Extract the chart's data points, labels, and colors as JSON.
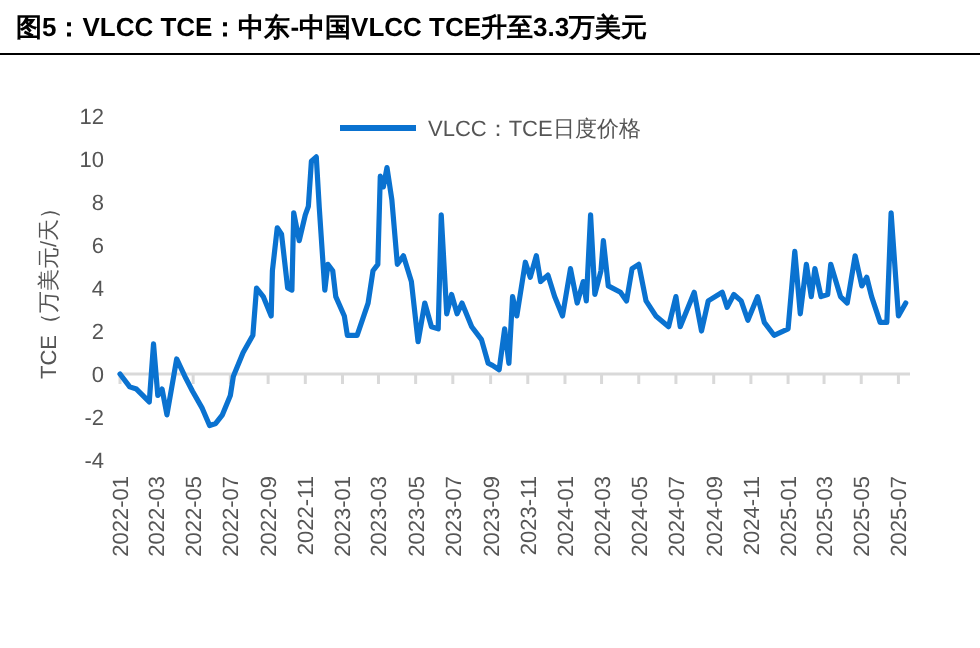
{
  "chart_data": {
    "type": "line",
    "title": "图5：VLCC TCE：中东-中国VLCC TCE升至3.3万美元",
    "ylabel": "TCE（万美元/天）",
    "x": [
      "2022-01-01",
      "2022-01-17",
      "2022-01-28",
      "2022-02-18",
      "2022-02-25",
      "2022-03-04",
      "2022-03-11",
      "2022-03-19",
      "2022-04-04",
      "2022-04-19",
      "2022-04-30",
      "2022-05-16",
      "2022-05-28",
      "2022-06-07",
      "2022-06-18",
      "2022-07-01",
      "2022-07-06",
      "2022-07-22",
      "2022-08-07",
      "2022-08-13",
      "2022-08-24",
      "2022-09-06",
      "2022-09-08",
      "2022-09-16",
      "2022-09-23",
      "2022-10-03",
      "2022-10-10",
      "2022-10-13",
      "2022-10-22",
      "2022-11-01",
      "2022-11-06",
      "2022-11-11",
      "2022-11-19",
      "2022-11-24",
      "2022-12-03",
      "2022-12-08",
      "2022-12-16",
      "2022-12-21",
      "2023-01-04",
      "2023-01-09",
      "2023-01-25",
      "2023-02-12",
      "2023-02-20",
      "2023-02-28",
      "2023-03-04",
      "2023-03-09",
      "2023-03-15",
      "2023-03-23",
      "2023-04-01",
      "2023-04-11",
      "2023-04-24",
      "2023-05-05",
      "2023-05-16",
      "2023-05-27",
      "2023-06-07",
      "2023-06-12",
      "2023-06-21",
      "2023-06-29",
      "2023-07-08",
      "2023-07-16",
      "2023-08-01",
      "2023-08-17",
      "2023-08-28",
      "2023-09-04",
      "2023-09-15",
      "2023-09-24",
      "2023-10-01",
      "2023-10-07",
      "2023-10-14",
      "2023-10-28",
      "2023-11-05",
      "2023-11-15",
      "2023-11-22",
      "2023-12-04",
      "2023-12-15",
      "2023-12-28",
      "2024-01-10",
      "2024-01-21",
      "2024-01-31",
      "2024-02-05",
      "2024-02-12",
      "2024-02-19",
      "2024-02-29",
      "2024-03-04",
      "2024-03-12",
      "2024-04-01",
      "2024-04-11",
      "2024-04-20",
      "2024-05-01",
      "2024-05-13",
      "2024-05-29",
      "2024-06-19",
      "2024-07-01",
      "2024-07-08",
      "2024-07-31",
      "2024-08-12",
      "2024-08-23",
      "2024-09-15",
      "2024-09-23",
      "2024-10-04",
      "2024-10-16",
      "2024-10-27",
      "2024-11-12",
      "2024-11-23",
      "2024-12-09",
      "2025-01-01",
      "2025-01-12",
      "2025-01-21",
      "2025-01-31",
      "2025-02-08",
      "2025-02-14",
      "2025-02-24",
      "2025-03-07",
      "2025-03-12",
      "2025-03-28",
      "2025-04-08",
      "2025-04-21",
      "2025-05-02",
      "2025-05-10",
      "2025-05-18",
      "2025-06-01",
      "2025-06-12",
      "2025-06-19",
      "2025-07-01",
      "2025-07-13"
    ],
    "series": [
      {
        "name": "VLCC：TCE日度价格",
        "color": "#0a72d0",
        "values": [
          0,
          -0.6,
          -0.7,
          -1.3,
          1.4,
          -1.0,
          -0.7,
          -1.9,
          0.7,
          -0.2,
          -0.8,
          -1.6,
          -2.4,
          -2.3,
          -1.9,
          -1.0,
          -0.1,
          1.0,
          1.8,
          4.0,
          3.6,
          2.7,
          4.8,
          6.8,
          6.5,
          4.0,
          3.9,
          7.5,
          6.2,
          7.4,
          7.8,
          9.9,
          10.1,
          7.7,
          3.9,
          5.1,
          4.8,
          3.6,
          2.7,
          1.8,
          1.8,
          3.3,
          4.8,
          5.1,
          9.2,
          8.7,
          9.6,
          8.1,
          5.1,
          5.5,
          4.3,
          1.5,
          3.3,
          2.2,
          2.1,
          7.4,
          2.8,
          3.7,
          2.8,
          3.3,
          2.2,
          1.6,
          0.5,
          0.4,
          0.2,
          2.1,
          0.5,
          3.6,
          2.7,
          5.2,
          4.5,
          5.5,
          4.3,
          4.6,
          3.6,
          2.7,
          4.9,
          3.3,
          4.3,
          3.4,
          7.4,
          3.7,
          4.8,
          6.2,
          4.1,
          3.8,
          3.4,
          4.9,
          5.1,
          3.4,
          2.7,
          2.2,
          3.6,
          2.2,
          3.8,
          2.0,
          3.4,
          3.8,
          3.1,
          3.7,
          3.4,
          2.5,
          3.6,
          2.4,
          1.8,
          2.1,
          5.7,
          2.8,
          5.1,
          3.6,
          4.9,
          3.6,
          3.7,
          5.1,
          3.6,
          3.3,
          5.5,
          4.1,
          4.5,
          3.6,
          2.4,
          2.4,
          7.5,
          2.7,
          3.3
        ]
      }
    ],
    "xlim": [
      "2022-01-01",
      "2025-07-20"
    ],
    "xticks": [
      {
        "value": "2022-01-01",
        "label": "2022-01"
      },
      {
        "value": "2022-03-01",
        "label": "2022-03"
      },
      {
        "value": "2022-05-01",
        "label": "2022-05"
      },
      {
        "value": "2022-07-01",
        "label": "2022-07"
      },
      {
        "value": "2022-09-01",
        "label": "2022-09"
      },
      {
        "value": "2022-11-01",
        "label": "2022-11"
      },
      {
        "value": "2023-01-01",
        "label": "2023-01"
      },
      {
        "value": "2023-03-01",
        "label": "2023-03"
      },
      {
        "value": "2023-05-01",
        "label": "2023-05"
      },
      {
        "value": "2023-07-01",
        "label": "2023-07"
      },
      {
        "value": "2023-09-01",
        "label": "2023-09"
      },
      {
        "value": "2023-11-01",
        "label": "2023-11"
      },
      {
        "value": "2024-01-01",
        "label": "2024-01"
      },
      {
        "value": "2024-03-01",
        "label": "2024-03"
      },
      {
        "value": "2024-05-01",
        "label": "2024-05"
      },
      {
        "value": "2024-07-01",
        "label": "2024-07"
      },
      {
        "value": "2024-09-01",
        "label": "2024-09"
      },
      {
        "value": "2024-11-01",
        "label": "2024-11"
      },
      {
        "value": "2025-01-01",
        "label": "2025-01"
      },
      {
        "value": "2025-03-01",
        "label": "2025-03"
      },
      {
        "value": "2025-05-01",
        "label": "2025-05"
      },
      {
        "value": "2025-07-01",
        "label": "2025-07"
      }
    ],
    "ylim": [
      -4,
      12
    ],
    "yticks": [
      -4,
      -2,
      0,
      2,
      4,
      6,
      8,
      10,
      12
    ],
    "legend": "top",
    "marker": "none",
    "line_style": "solid"
  }
}
